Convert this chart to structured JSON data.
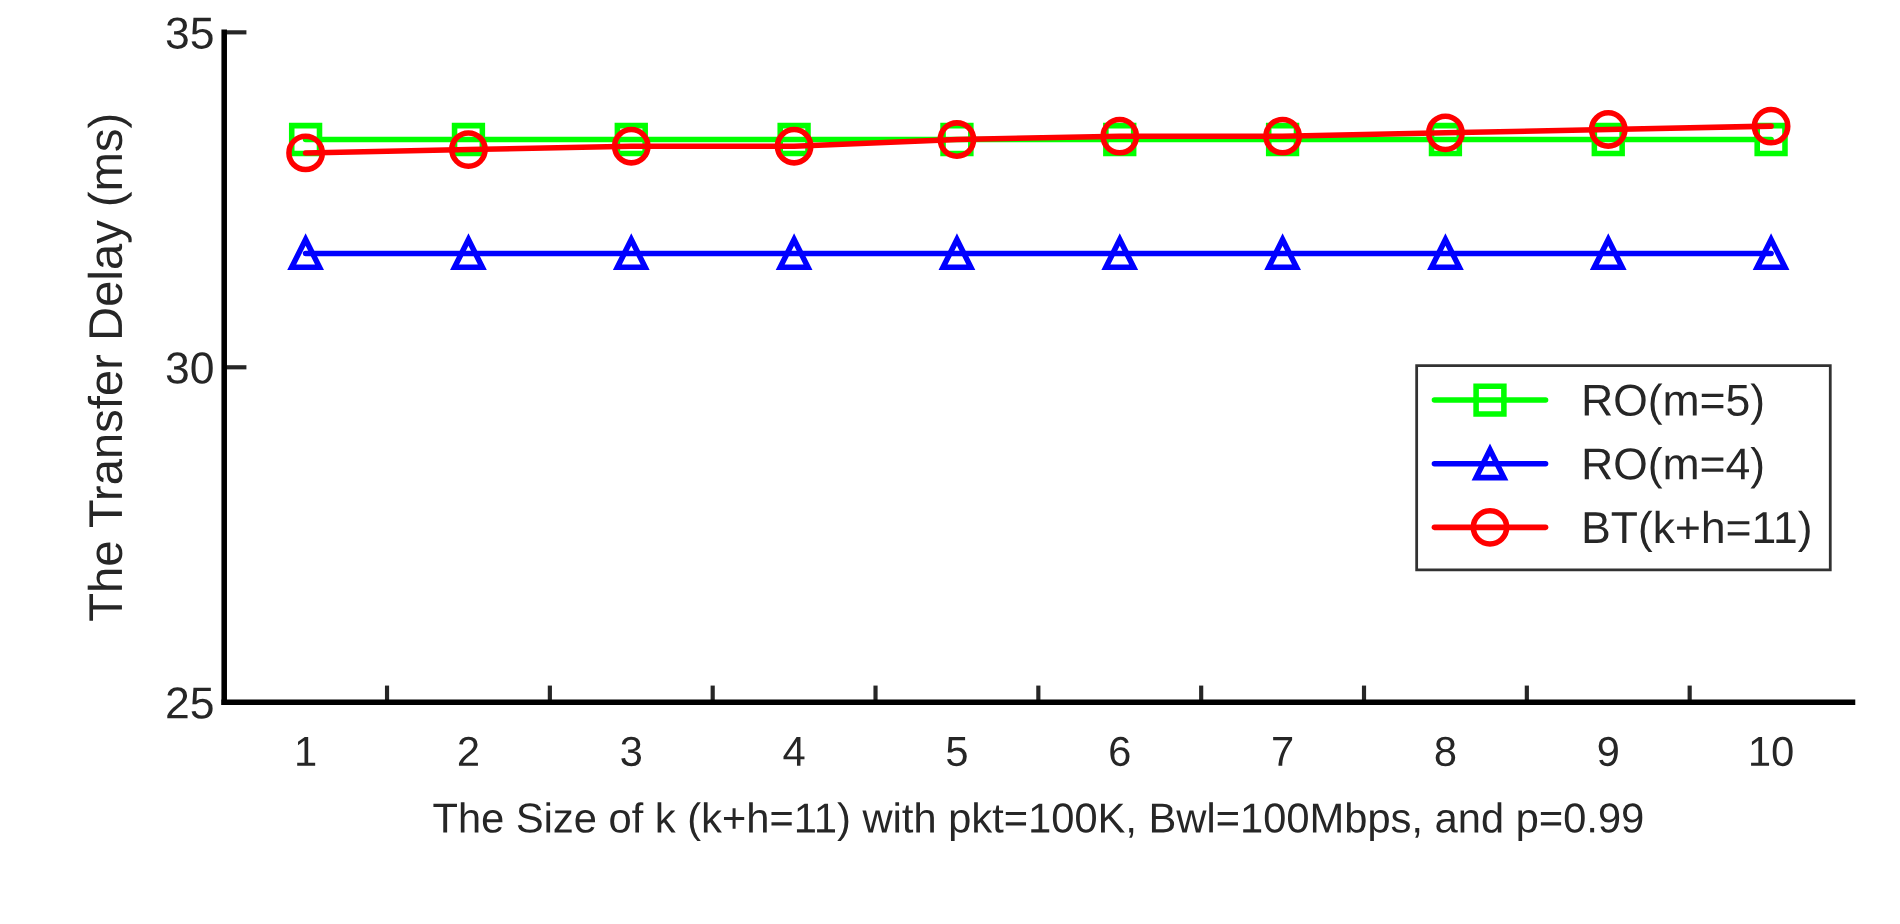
{
  "chart_data": {
    "type": "line",
    "xlabel": "The Size of k (k+h=11) with pkt=100K, Bwl=100Mbps, and p=0.99",
    "ylabel": "The Transfer Delay (ms)",
    "categories": [
      "1",
      "2",
      "3",
      "4",
      "5",
      "6",
      "7",
      "8",
      "9",
      "10"
    ],
    "series": [
      {
        "name": "RO(m=5)",
        "color": "#00ff00",
        "marker": "square",
        "values": [
          33.4,
          33.4,
          33.4,
          33.4,
          33.4,
          33.4,
          33.4,
          33.4,
          33.4,
          33.4
        ]
      },
      {
        "name": "RO(m=4)",
        "color": "#0000ff",
        "marker": "triangle",
        "values": [
          31.7,
          31.7,
          31.7,
          31.7,
          31.7,
          31.7,
          31.7,
          31.7,
          31.7,
          31.7
        ]
      },
      {
        "name": "BT(k+h=11)",
        "color": "#ff0000",
        "marker": "circle",
        "values": [
          33.2,
          33.25,
          33.3,
          33.3,
          33.4,
          33.45,
          33.45,
          33.5,
          33.55,
          33.6
        ]
      }
    ],
    "ylim": [
      25,
      35
    ],
    "yticks": [
      25,
      30,
      35
    ],
    "grid": false,
    "legend": "right"
  }
}
